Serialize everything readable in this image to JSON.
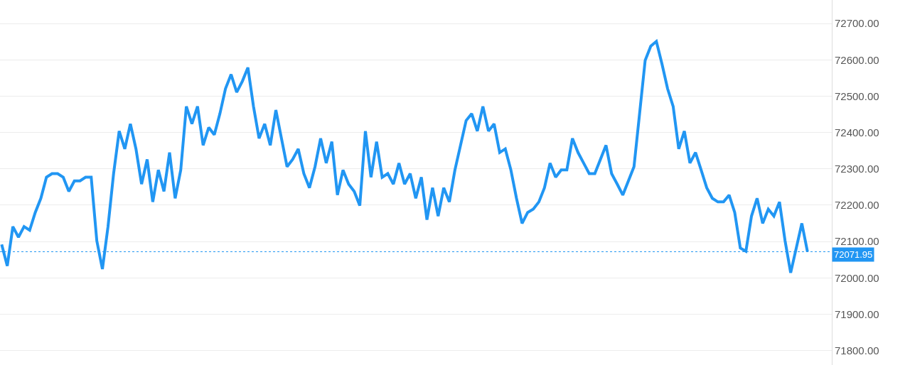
{
  "chart_data": {
    "type": "line",
    "categories": [
      null,
      null,
      null,
      null,
      null,
      null,
      null,
      null,
      null,
      null,
      null,
      null,
      null,
      null,
      null,
      null,
      null,
      null,
      null,
      null,
      null,
      null,
      null,
      null,
      null,
      null,
      null,
      null,
      null,
      null,
      null,
      null,
      null,
      null,
      null,
      null,
      null,
      null,
      null,
      null,
      null,
      null,
      null,
      null,
      null,
      null,
      null,
      null,
      null,
      null,
      null,
      null,
      null,
      null,
      null,
      null,
      null,
      null,
      null,
      null,
      null,
      null,
      null,
      null,
      null,
      null,
      null,
      null,
      null,
      null,
      null,
      null,
      null,
      null,
      null,
      null,
      null,
      null,
      null,
      null,
      null,
      null,
      null,
      null,
      null,
      null,
      null,
      null,
      null,
      null,
      null,
      null,
      null,
      null,
      null,
      null,
      null,
      null,
      null,
      null,
      null,
      null,
      null,
      null,
      null,
      null,
      null,
      null,
      null,
      null,
      null,
      null,
      null,
      null,
      null,
      null,
      null,
      null,
      null,
      null,
      null,
      null,
      null,
      null,
      null,
      null,
      null,
      null,
      null,
      null,
      null,
      null,
      null,
      null,
      null,
      null,
      null,
      null,
      null,
      null,
      null,
      null,
      null,
      null,
      null
    ],
    "series": [
      {
        "color": "#2196f3",
        "values": [
          72092,
          72033,
          72141,
          72112,
          72141,
          72131,
          72180,
          72219,
          72277,
          72287,
          72287,
          72277,
          72238,
          72267,
          72267,
          72277,
          72277,
          72102,
          72024,
          72141,
          72287,
          72404,
          72355,
          72424,
          72355,
          72258,
          72326,
          72209,
          72297,
          72238,
          72345,
          72219,
          72297,
          72472,
          72424,
          72472,
          72365,
          72414,
          72394,
          72452,
          72521,
          72560,
          72511,
          72541,
          72579,
          72472,
          72384,
          72424,
          72365,
          72462,
          72384,
          72306,
          72326,
          72355,
          72287,
          72248,
          72306,
          72384,
          72316,
          72375,
          72228,
          72297,
          72258,
          72238,
          72199,
          72404,
          72277,
          72375,
          72277,
          72287,
          72258,
          72316,
          72258,
          72287,
          72219,
          72277,
          72160,
          72248,
          72170,
          72248,
          72209,
          72297,
          72365,
          72433,
          72452,
          72404,
          72472,
          72404,
          72424,
          72345,
          72355,
          72297,
          72219,
          72150,
          72180,
          72189,
          72209,
          72248,
          72316,
          72277,
          72297,
          72297,
          72384,
          72345,
          72316,
          72287,
          72287,
          72326,
          72365,
          72287,
          72258,
          72228,
          72267,
          72306,
          72452,
          72599,
          72638,
          72651,
          72589,
          72521,
          72472,
          72355,
          72404,
          72316,
          72345,
          72297,
          72248,
          72219,
          72209,
          72209,
          72228,
          72180,
          72082,
          72073,
          72170,
          72219,
          72150,
          72189,
          72170,
          72209,
          72102,
          72014,
          72082,
          72150,
          72072
        ]
      }
    ],
    "ylim": [
      71760,
      72765
    ],
    "yticks": [
      {
        "value": 71800,
        "label": "71800.00"
      },
      {
        "value": 71900,
        "label": "71900.00"
      },
      {
        "value": 72000,
        "label": "72000.00"
      },
      {
        "value": 72100,
        "label": "72100.00"
      },
      {
        "value": 72200,
        "label": "72200.00"
      },
      {
        "value": 72300,
        "label": "72300.00"
      },
      {
        "value": 72400,
        "label": "72400.00"
      },
      {
        "value": 72500,
        "label": "72500.00"
      },
      {
        "value": 72600,
        "label": "72600.00"
      },
      {
        "value": 72700,
        "label": "72700.00"
      }
    ],
    "ref_lines": [
      {
        "axis": "y",
        "value": 72071.95,
        "label": "72071.95",
        "color": "#2196f3",
        "line_style": "dotted"
      }
    ],
    "grid": "y",
    "marker": "none",
    "line_style": "solid"
  }
}
